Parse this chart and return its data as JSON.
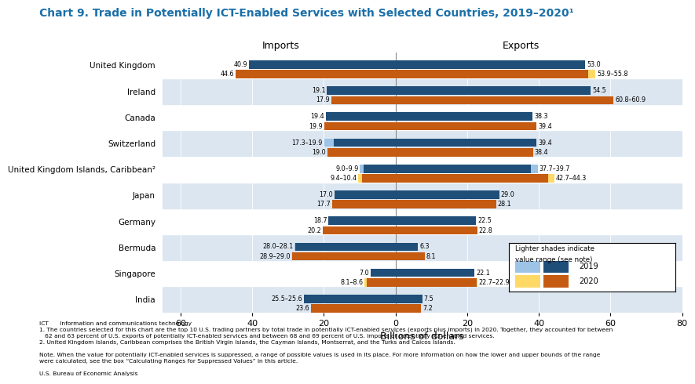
{
  "title": "Chart 9. Trade in Potentially ICT-Enabled Services with Selected Countries, 2019–2020¹",
  "title_color": "#1a6fa8",
  "xlabel": "Billions of dollars",
  "imports_label": "Imports",
  "exports_label": "Exports",
  "countries": [
    "United Kingdom",
    "Ireland",
    "Canada",
    "Switzerland",
    "United Kingdom Islands, Caribbean²",
    "Japan",
    "Germany",
    "Bermuda",
    "Singapore",
    "India"
  ],
  "color_2019_dark": "#1f4e79",
  "color_2019_light": "#9dc3e6",
  "color_2020_dark": "#c55a11",
  "color_2020_gold_dark": "#c49a00",
  "color_2020_gold_light": "#ffd966",
  "row_bg_light": "#dce6f1",
  "row_bg_white": "#ffffff",
  "imports_2019": [
    40.9,
    19.1,
    19.4,
    18.6,
    9.45,
    17.0,
    18.7,
    28.05,
    7.0,
    25.55
  ],
  "imports_2019_label": [
    "40.9",
    "19.1",
    "19.4",
    "17.3–19.9",
    "9.0–9.9",
    "17.0",
    "18.7",
    "28.0–28.1",
    "7.0",
    "25.5–25.6"
  ],
  "imports_2020": [
    44.6,
    17.9,
    19.9,
    19.0,
    9.9,
    17.7,
    20.2,
    28.95,
    8.35,
    23.6
  ],
  "imports_2020_label": [
    "44.6",
    "17.9",
    "19.9",
    "19.0",
    "9.4–10.4",
    "17.7",
    "20.2",
    "28.9–29.0",
    "8.1–8.6",
    "23.6"
  ],
  "exports_2019": [
    53.0,
    54.5,
    38.3,
    39.4,
    38.8,
    29.0,
    22.5,
    6.3,
    22.1,
    7.5
  ],
  "exports_2019_label": [
    "53.0",
    "54.5",
    "38.3",
    "39.4",
    "37.7–39.7",
    "29.0",
    "22.5",
    "6.3",
    "22.1",
    "7.5"
  ],
  "exports_2020": [
    54.85,
    60.85,
    39.4,
    38.4,
    43.5,
    28.1,
    22.8,
    8.1,
    22.8,
    7.2
  ],
  "exports_2020_label": [
    "53.9–55.8",
    "60.8–60.9",
    "39.4",
    "38.4",
    "42.7–44.3",
    "28.1",
    "22.8",
    "8.1",
    "22.7–22.9",
    "7.2"
  ],
  "imports_2019_range": [
    null,
    null,
    null,
    [
      17.3,
      19.9
    ],
    [
      9.0,
      9.9
    ],
    null,
    null,
    [
      28.0,
      28.1
    ],
    null,
    [
      25.5,
      25.6
    ]
  ],
  "imports_2020_range": [
    null,
    null,
    null,
    null,
    [
      9.4,
      10.4
    ],
    null,
    null,
    [
      28.9,
      29.0
    ],
    [
      8.1,
      8.6
    ],
    null
  ],
  "exports_2019_range": [
    null,
    null,
    null,
    null,
    [
      37.7,
      39.7
    ],
    null,
    null,
    null,
    null,
    null
  ],
  "exports_2020_range": [
    [
      53.9,
      55.8
    ],
    [
      60.8,
      60.9
    ],
    null,
    null,
    [
      42.7,
      44.3
    ],
    null,
    null,
    null,
    [
      22.7,
      22.9
    ],
    null
  ],
  "xlim": [
    -65,
    80
  ],
  "xticks": [
    -60,
    -40,
    -20,
    0,
    20,
    40,
    60,
    80
  ],
  "xticklabels": [
    "60",
    "40",
    "20",
    "0",
    "20",
    "40",
    "60",
    "80"
  ],
  "footnote_lines": [
    "ICT      Information and communications technology",
    "1. The countries selected for this chart are the top 10 U.S. trading partners by total trade in potentially ICT-enabled services (exports plus imports) in 2020. Together, they accounted for between",
    "   62 and 63 percent of U.S. exports of potentially ICT-enabled services and between 68 and 69 percent of U.S. imports of potentially ICT-enabled services.",
    "2. United Kingdom Islands, Caribbean comprises the British Virgin Islands, the Cayman Islands, Montserrat, and the Turks and Caicos Islands.",
    "",
    "Note. When the value for potentially ICT-enabled services is suppressed, a range of possible values is used in its place. For more information on how the lower and upper bounds of the range",
    "were calculated, see the box “Calculating Ranges for Suppressed Values” in this article.",
    "",
    "U.S. Bureau of Economic Analysis"
  ]
}
